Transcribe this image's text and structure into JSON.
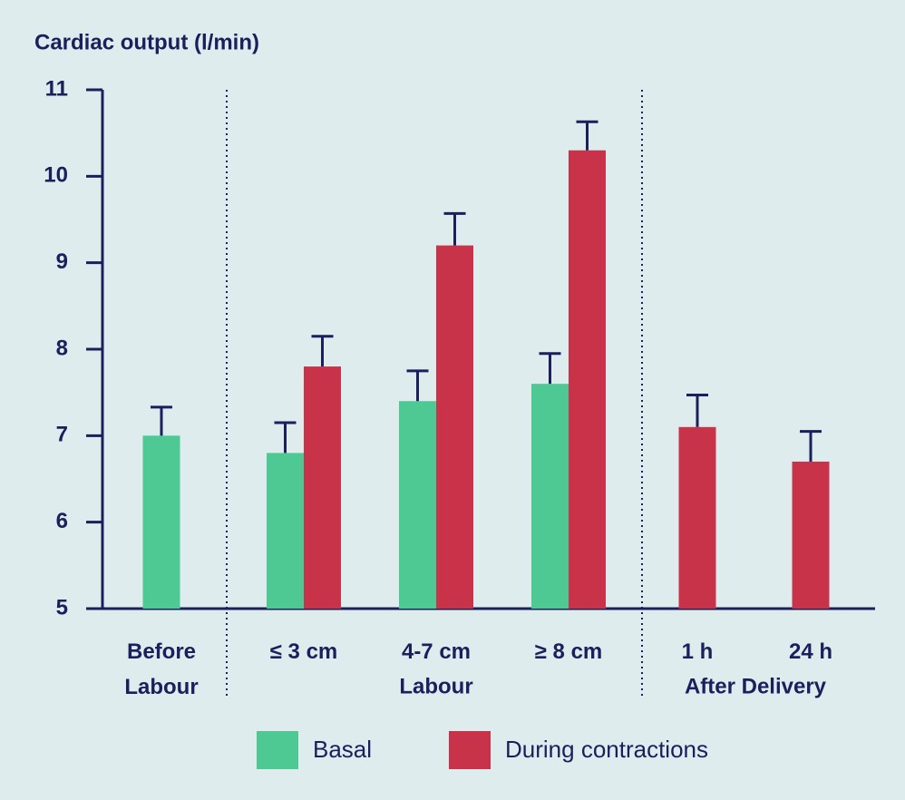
{
  "chart_data": {
    "type": "bar",
    "title": "Cardiac output (l/min)",
    "categories": [
      "Before Labour",
      "≤ 3 cm",
      "4-7 cm",
      "≥ 8 cm",
      "1 h",
      "24 h"
    ],
    "groups": [
      {
        "label": "Labour"
      },
      {
        "label": "After Delivery"
      }
    ],
    "series": [
      {
        "name": "Basal",
        "color": "#4ec994",
        "values": [
          7.0,
          6.8,
          7.4,
          7.6,
          null,
          null
        ],
        "errors": [
          0.33,
          0.35,
          0.35,
          0.35,
          null,
          null
        ]
      },
      {
        "name": "During contractions",
        "color": "#c8334a",
        "values": [
          null,
          7.8,
          9.2,
          10.3,
          7.1,
          6.7
        ],
        "errors": [
          null,
          0.35,
          0.37,
          0.33,
          0.37,
          0.35
        ]
      }
    ],
    "ylim": [
      5,
      11
    ],
    "yticks": [
      5,
      6,
      7,
      8,
      9,
      10,
      11
    ],
    "error_color": "#1b1f5c"
  }
}
